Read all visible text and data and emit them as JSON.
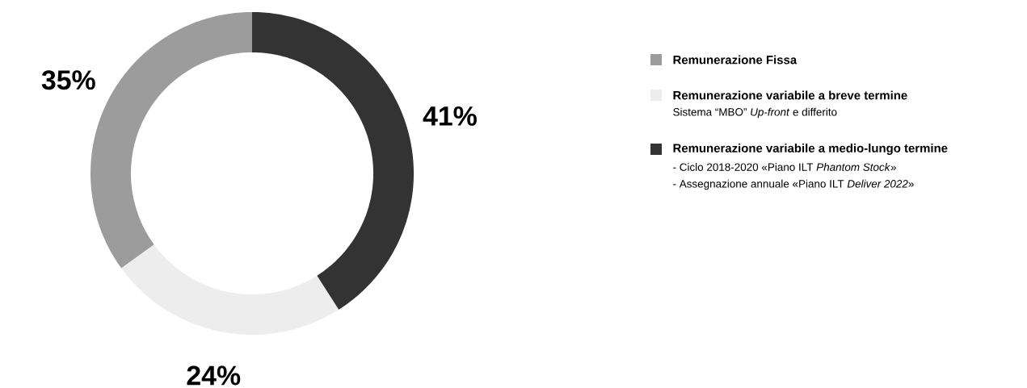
{
  "chart_data": {
    "type": "donut",
    "categories": [
      "Remunerazione Fissa",
      "Remunerazione variabile a breve termine",
      "Remunerazione variabile a medio-lungo termine"
    ],
    "values": [
      35,
      24,
      41
    ],
    "colors": [
      "#9c9c9c",
      "#ededed",
      "#333333"
    ],
    "value_labels": [
      "35%",
      "24%",
      "41%"
    ],
    "legend": "right",
    "annotations": [
      "Sistema “MBO” *Up-front* e differito",
      "- Ciclo 2018-2020 «Piano ILT *Phantom Stock*»",
      "- Assegnazione annuale «Piano ILT *Deliver 2022*»"
    ]
  }
}
